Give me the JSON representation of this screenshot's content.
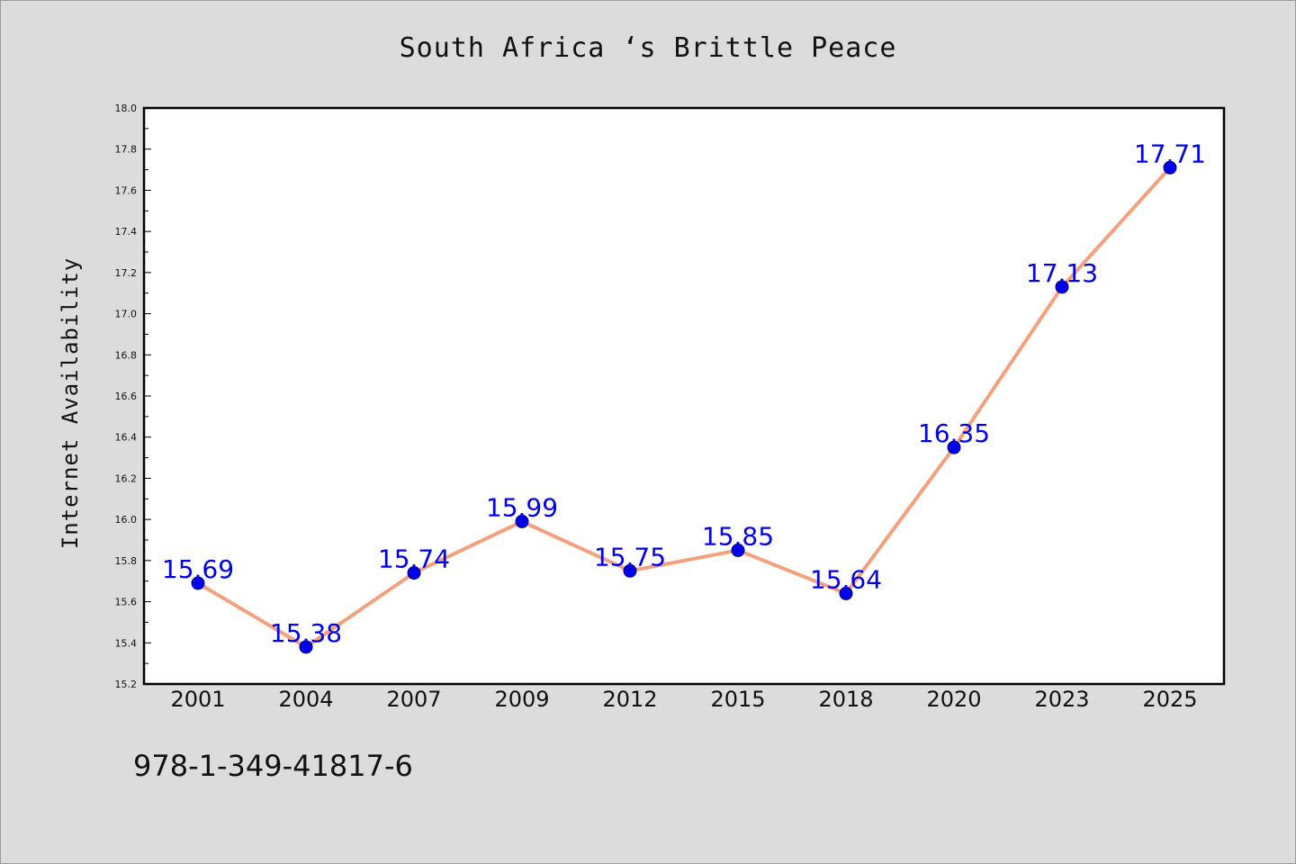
{
  "title": "South Africa ‘s Brittle Peace",
  "footer_text": "978-1-349-41817-6",
  "colors": {
    "background": "#dcdcdc",
    "plot_background": "#ffffff",
    "line": "#f4a07c",
    "marker": "#0000ee",
    "data_label": "#0000ee"
  },
  "chart_data": {
    "type": "line",
    "title": "South Africa ‘s Brittle Peace",
    "xlabel": "",
    "ylabel": "Internet Availability",
    "categories": [
      "2001",
      "2004",
      "2007",
      "2009",
      "2012",
      "2015",
      "2018",
      "2020",
      "2023",
      "2025"
    ],
    "series": [
      {
        "values": [
          15.69,
          15.38,
          15.74,
          15.99,
          15.75,
          15.85,
          15.64,
          16.35,
          17.13,
          17.71
        ],
        "labels": [
          "15.69",
          "15.38",
          "15.74",
          "15.99",
          "15.75",
          "15.85",
          "15.64",
          "16.35",
          "17.13",
          "17.71"
        ]
      }
    ],
    "ylim": [
      15.2,
      18.0
    ],
    "yticks": [
      "15.2",
      "15.4",
      "15.6",
      "15.8",
      "16.0",
      "16.2",
      "16.4",
      "16.6",
      "16.8",
      "17.0",
      "17.2",
      "17.4",
      "17.6",
      "17.8",
      "18.0"
    ],
    "grid": false,
    "legend": "none",
    "markers": "circle"
  }
}
